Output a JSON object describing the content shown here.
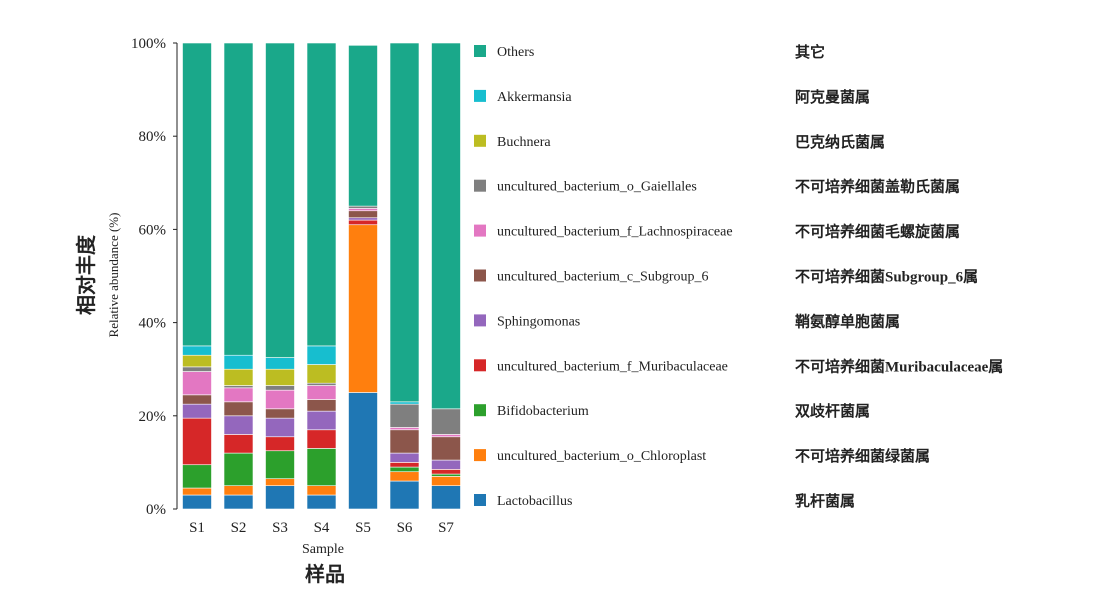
{
  "chart_data": {
    "type": "bar",
    "stacked": true,
    "normalized": true,
    "categories": [
      "S1",
      "S2",
      "S3",
      "S4",
      "S5",
      "S6",
      "S7"
    ],
    "xlabel": "Sample",
    "xlabel_cn": "样品",
    "ylabel": "Relative abundance (%)",
    "ylabel_cn": "相对丰度",
    "ylim": [
      0,
      100
    ],
    "yticks": [
      "0%",
      "20%",
      "40%",
      "60%",
      "80%",
      "100%"
    ],
    "grid": false,
    "legend_position": "right",
    "series": [
      {
        "name": "Lactobacillus",
        "name_cn": "乳杆菌属",
        "color": "#1f77b4",
        "values": [
          3.0,
          3.0,
          5.0,
          3.0,
          25.0,
          6.0,
          5.0
        ]
      },
      {
        "name": "uncultured_bacterium_o_Chloroplast",
        "name_cn": "不可培养细菌绿菌属",
        "color": "#ff7f0e",
        "values": [
          1.5,
          2.0,
          1.5,
          2.0,
          36.0,
          2.0,
          2.0
        ]
      },
      {
        "name": "Bifidobacterium",
        "name_cn": "双歧杆菌属",
        "color": "#2ca02c",
        "values": [
          5.0,
          7.0,
          6.0,
          8.0,
          0,
          1.0,
          0.5
        ]
      },
      {
        "name": "uncultured_bacterium_f_Muribaculaceae",
        "name_cn": "不可培养细菌Muribaculaceae属",
        "color": "#d62728",
        "values": [
          10.0,
          4.0,
          3.0,
          4.0,
          1.0,
          1.0,
          1.0
        ]
      },
      {
        "name": "Sphingomonas",
        "name_cn": "鞘氨醇单胞菌属",
        "color": "#9467bd",
        "values": [
          3.0,
          4.0,
          4.0,
          4.0,
          0.5,
          2.0,
          2.0
        ]
      },
      {
        "name": "uncultured_bacterium_c_Subgroup_6",
        "name_cn": "不可培养细菌Subgroup_6属",
        "color": "#8c564b",
        "values": [
          2.0,
          3.0,
          2.0,
          2.5,
          1.5,
          5.0,
          5.0
        ]
      },
      {
        "name": "uncultured_bacterium_f_Lachnospiraceae",
        "name_cn": "不可培养细菌毛螺旋菌属",
        "color": "#e377c2",
        "values": [
          5.0,
          3.0,
          4.0,
          3.0,
          0.5,
          0.5,
          0.5
        ]
      },
      {
        "name": "uncultured_bacterium_o_Gaiellales",
        "name_cn": "不可培养细菌盖勒氏菌属",
        "color": "#7f7f7f",
        "values": [
          1.0,
          0.5,
          1.0,
          0.5,
          0.5,
          5.0,
          5.5
        ]
      },
      {
        "name": "Buchnera",
        "name_cn": "巴克纳氏菌属",
        "color": "#bcbd22",
        "values": [
          2.5,
          3.5,
          3.5,
          4.0,
          0,
          0,
          0
        ]
      },
      {
        "name": "Akkermansia",
        "name_cn": "阿克曼菌属",
        "color": "#17becf",
        "values": [
          2.0,
          3.0,
          2.5,
          4.0,
          0,
          0.5,
          0
        ]
      },
      {
        "name": "Others",
        "name_cn": "其它",
        "color": "#1aa88a",
        "values": [
          65.0,
          67.0,
          67.5,
          65.0,
          34.5,
          77.0,
          78.5
        ]
      }
    ]
  }
}
